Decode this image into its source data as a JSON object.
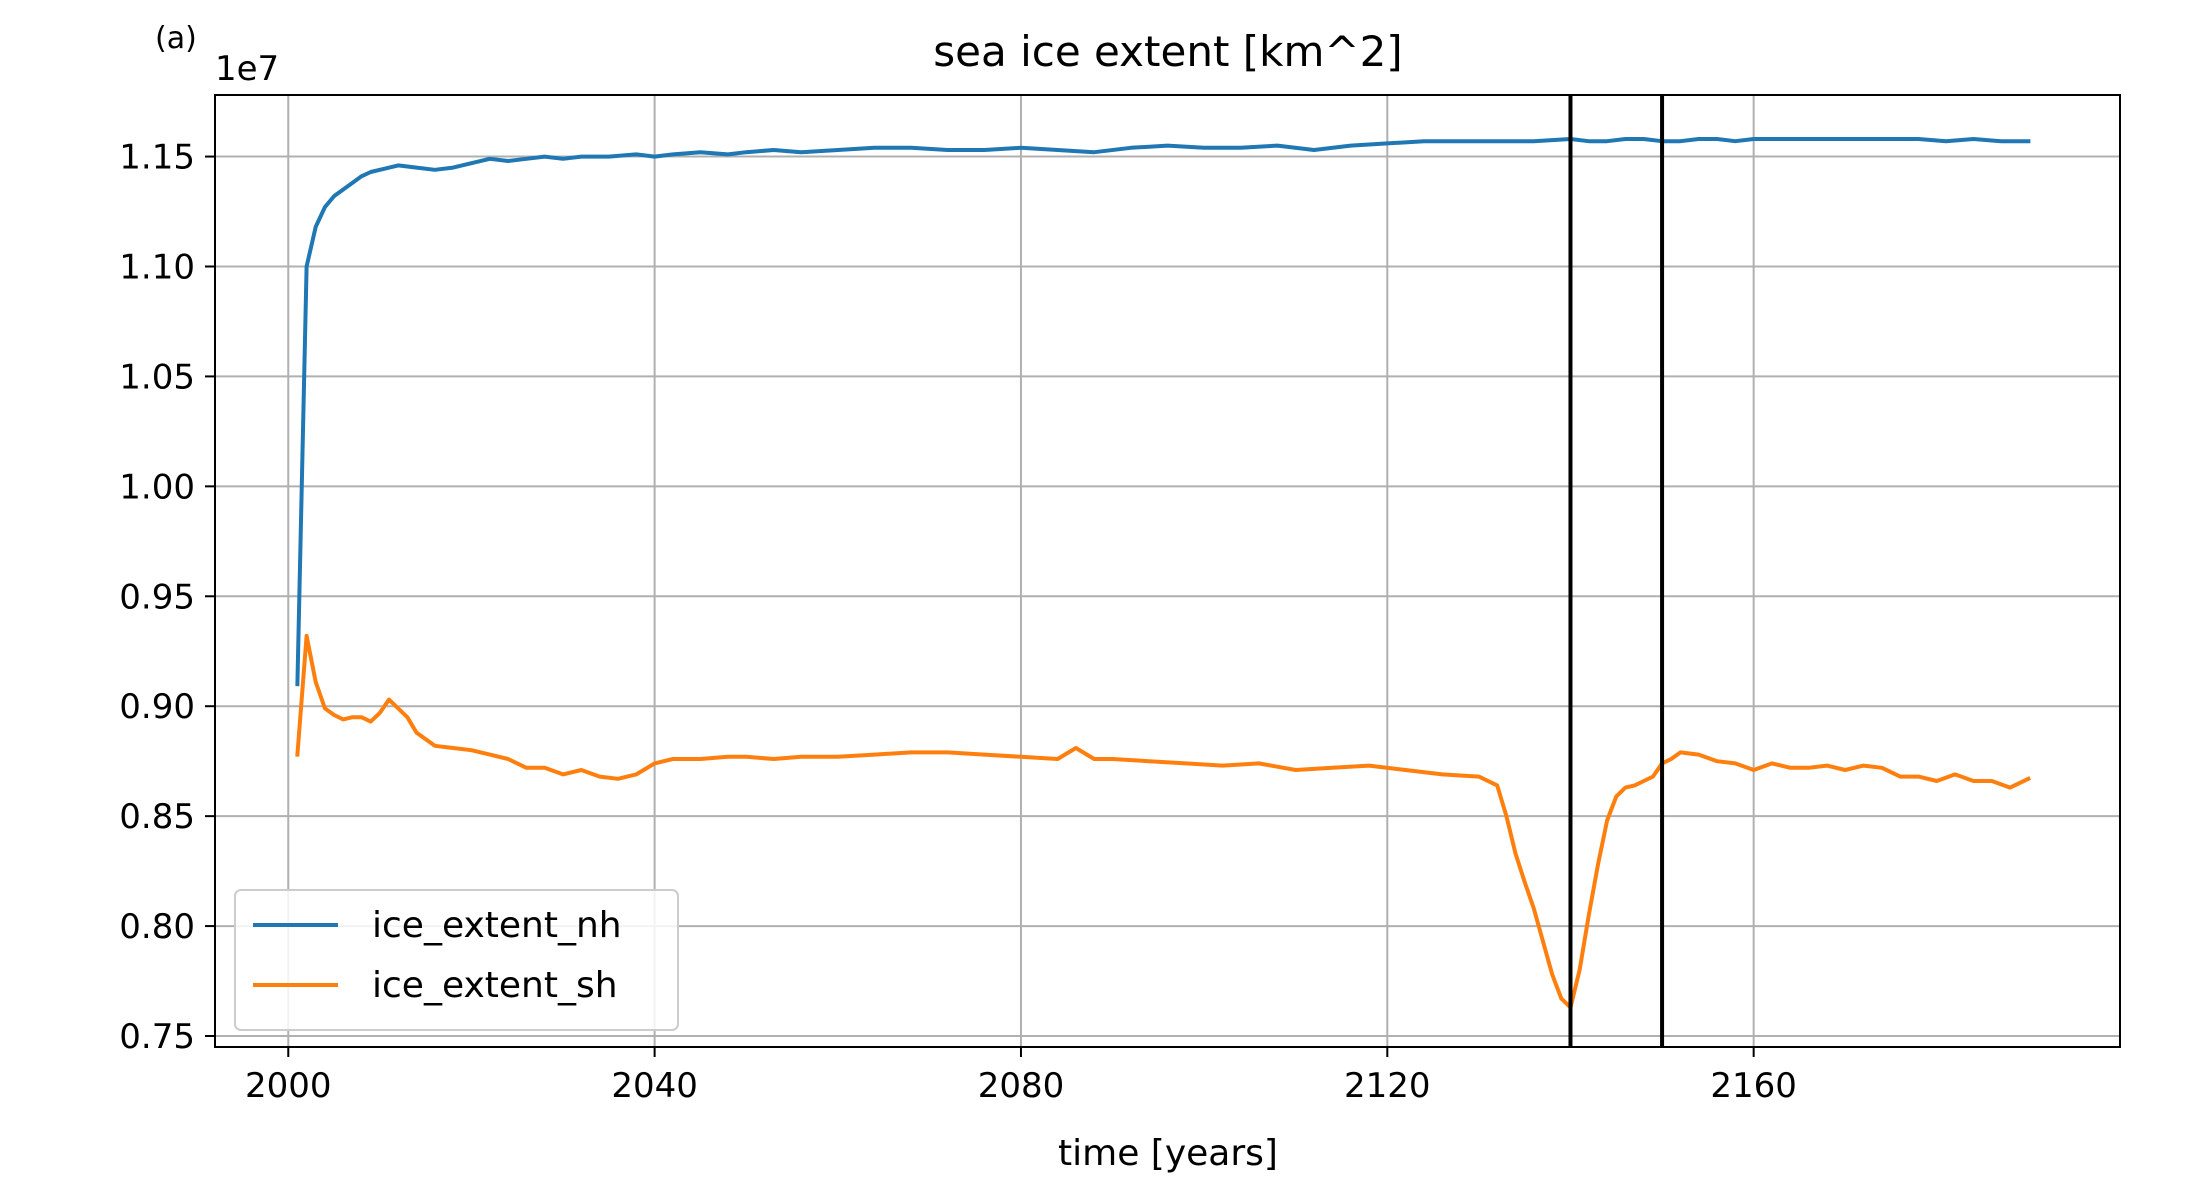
{
  "panel_label": "(a)",
  "chart_data": {
    "type": "line",
    "title": "sea ice extent [km^2]",
    "xlabel": "time [years]",
    "ylabel": "",
    "offset_label": "1e7",
    "xlim": [
      1992,
      2200
    ],
    "ylim": [
      0.745,
      1.178
    ],
    "xticks": [
      2000,
      2040,
      2080,
      2120,
      2160
    ],
    "yticks": [
      0.75,
      0.8,
      0.85,
      0.9,
      0.95,
      1.0,
      1.05,
      1.1,
      1.15
    ],
    "ytick_labels": [
      "0.75",
      "0.80",
      "0.85",
      "0.90",
      "0.95",
      "1.00",
      "1.05",
      "1.10",
      "1.15"
    ],
    "grid": true,
    "legend_position": "lower-left",
    "vertical_lines": [
      2140,
      2150
    ],
    "vline_color": "#000000",
    "series": [
      {
        "name": "ice_extent_nh",
        "color": "#1f77b4",
        "x": [
          2001,
          2002,
          2003,
          2004,
          2005,
          2006,
          2007,
          2008,
          2009,
          2010,
          2012,
          2014,
          2016,
          2018,
          2020,
          2022,
          2024,
          2026,
          2028,
          2030,
          2032,
          2035,
          2038,
          2040,
          2042,
          2045,
          2048,
          2050,
          2053,
          2056,
          2060,
          2064,
          2068,
          2072,
          2076,
          2080,
          2084,
          2088,
          2092,
          2096,
          2100,
          2104,
          2108,
          2112,
          2116,
          2120,
          2124,
          2128,
          2132,
          2136,
          2140,
          2142,
          2144,
          2146,
          2148,
          2150,
          2152,
          2154,
          2156,
          2158,
          2160,
          2163,
          2166,
          2169,
          2172,
          2175,
          2178,
          2181,
          2184,
          2187,
          2190
        ],
        "y": [
          0.91,
          1.1,
          1.118,
          1.127,
          1.132,
          1.135,
          1.138,
          1.141,
          1.143,
          1.144,
          1.146,
          1.145,
          1.144,
          1.145,
          1.147,
          1.149,
          1.148,
          1.149,
          1.15,
          1.149,
          1.15,
          1.15,
          1.151,
          1.15,
          1.151,
          1.152,
          1.151,
          1.152,
          1.153,
          1.152,
          1.153,
          1.154,
          1.154,
          1.153,
          1.153,
          1.154,
          1.153,
          1.152,
          1.154,
          1.155,
          1.154,
          1.154,
          1.155,
          1.153,
          1.155,
          1.156,
          1.157,
          1.157,
          1.157,
          1.157,
          1.158,
          1.157,
          1.157,
          1.158,
          1.158,
          1.157,
          1.157,
          1.158,
          1.158,
          1.157,
          1.158,
          1.158,
          1.158,
          1.158,
          1.158,
          1.158,
          1.158,
          1.157,
          1.158,
          1.157,
          1.157
        ]
      },
      {
        "name": "ice_extent_sh",
        "color": "#ff7f0e",
        "x": [
          2001,
          2002,
          2003,
          2004,
          2005,
          2006,
          2007,
          2008,
          2009,
          2010,
          2011,
          2012,
          2013,
          2014,
          2016,
          2018,
          2020,
          2022,
          2024,
          2026,
          2028,
          2030,
          2032,
          2034,
          2036,
          2038,
          2040,
          2042,
          2045,
          2048,
          2050,
          2053,
          2056,
          2060,
          2064,
          2068,
          2072,
          2076,
          2080,
          2084,
          2086,
          2088,
          2090,
          2094,
          2098,
          2102,
          2106,
          2110,
          2114,
          2118,
          2122,
          2126,
          2130,
          2132,
          2133,
          2134,
          2135,
          2136,
          2137,
          2138,
          2139,
          2140,
          2141,
          2142,
          2143,
          2144,
          2145,
          2146,
          2147,
          2148,
          2149,
          2150,
          2151,
          2152,
          2154,
          2156,
          2158,
          2160,
          2162,
          2164,
          2166,
          2168,
          2170,
          2172,
          2174,
          2176,
          2178,
          2180,
          2182,
          2184,
          2186,
          2188,
          2190
        ],
        "y": [
          0.878,
          0.932,
          0.911,
          0.899,
          0.896,
          0.894,
          0.895,
          0.895,
          0.893,
          0.897,
          0.903,
          0.899,
          0.895,
          0.888,
          0.882,
          0.881,
          0.88,
          0.878,
          0.876,
          0.872,
          0.872,
          0.869,
          0.871,
          0.868,
          0.867,
          0.869,
          0.874,
          0.876,
          0.876,
          0.877,
          0.877,
          0.876,
          0.877,
          0.877,
          0.878,
          0.879,
          0.879,
          0.878,
          0.877,
          0.876,
          0.881,
          0.876,
          0.876,
          0.875,
          0.874,
          0.873,
          0.874,
          0.871,
          0.872,
          0.873,
          0.871,
          0.869,
          0.868,
          0.864,
          0.85,
          0.833,
          0.82,
          0.808,
          0.793,
          0.778,
          0.767,
          0.763,
          0.78,
          0.805,
          0.828,
          0.848,
          0.859,
          0.863,
          0.864,
          0.866,
          0.868,
          0.874,
          0.876,
          0.879,
          0.878,
          0.875,
          0.874,
          0.871,
          0.874,
          0.872,
          0.872,
          0.873,
          0.871,
          0.873,
          0.872,
          0.868,
          0.868,
          0.866,
          0.869,
          0.866,
          0.866,
          0.863,
          0.867
        ]
      }
    ]
  }
}
